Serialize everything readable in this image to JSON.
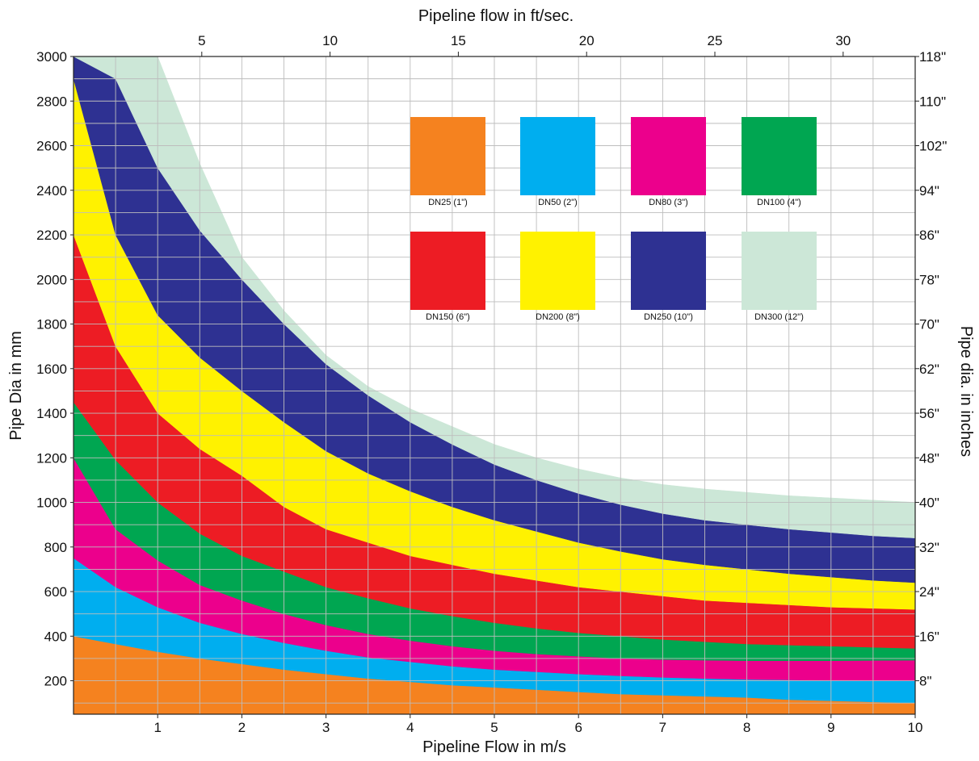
{
  "chart_data": {
    "type": "area",
    "x_unit_ft": "ft/sec",
    "xlabel": "Pipeline Flow in m/s",
    "xlabel_top": "Pipeline flow in ft/sec.",
    "ylabel": "Pipe Dia in mm",
    "ylabel_right": "Pipe dia. in inches",
    "xlim": [
      0,
      10
    ],
    "ylim": [
      50,
      3000
    ],
    "x_ticks": [
      "1",
      "2",
      "3",
      "4",
      "5",
      "6",
      "7",
      "8",
      "9",
      "10"
    ],
    "x_ticks_values": [
      1,
      2,
      3,
      4,
      5,
      6,
      7,
      8,
      9,
      10
    ],
    "x_top_ticks": [
      "5",
      "10",
      "15",
      "20",
      "25",
      "30"
    ],
    "x_top_ticks_values": [
      5,
      10,
      15,
      20,
      25,
      30
    ],
    "y_ticks": [
      "200",
      "400",
      "600",
      "800",
      "1000",
      "1200",
      "1400",
      "1600",
      "1800",
      "2000",
      "2200",
      "2400",
      "2600",
      "2800",
      "3000"
    ],
    "y_ticks_values": [
      200,
      400,
      600,
      800,
      1000,
      1200,
      1400,
      1600,
      1800,
      2000,
      2200,
      2400,
      2600,
      2800,
      3000
    ],
    "y_right_ticks": [
      "8\"",
      "16\"",
      "24\"",
      "32\"",
      "40\"",
      "48\"",
      "56\"",
      "62\"",
      "70\"",
      "78\"",
      "86\"",
      "94\"",
      "102\"",
      "110\"",
      "118\""
    ],
    "y_right_ticks_values": [
      200,
      400,
      600,
      800,
      1000,
      1200,
      1400,
      1600,
      1800,
      2000,
      2200,
      2400,
      2600,
      2800,
      3000
    ],
    "grid": true,
    "legend_position": "top-right",
    "boundary_x": [
      0,
      0.5,
      1,
      1.5,
      2,
      2.5,
      3,
      3.5,
      4,
      4.5,
      5,
      5.5,
      6,
      6.5,
      7,
      7.5,
      8,
      8.5,
      9,
      9.5,
      10
    ],
    "series": [
      {
        "name": "DN25 (1\")",
        "color": "#F5821F",
        "lower": [
          50,
          50,
          50,
          50,
          50,
          50,
          50,
          50,
          50,
          50,
          50,
          50,
          50,
          50,
          50,
          50,
          50,
          50,
          50,
          50,
          50
        ],
        "upper": [
          400,
          365,
          330,
          300,
          275,
          250,
          230,
          210,
          195,
          180,
          170,
          160,
          150,
          140,
          135,
          130,
          125,
          115,
          110,
          105,
          100
        ]
      },
      {
        "name": "DN50 (2\")",
        "color": "#00AEEF",
        "lower": [
          400,
          365,
          330,
          300,
          275,
          250,
          230,
          210,
          195,
          180,
          170,
          160,
          150,
          140,
          135,
          130,
          125,
          115,
          110,
          105,
          100
        ],
        "upper": [
          750,
          620,
          530,
          460,
          410,
          370,
          335,
          305,
          285,
          265,
          250,
          240,
          230,
          222,
          215,
          210,
          206,
          204,
          202,
          201,
          200
        ]
      },
      {
        "name": "DN80 (3\")",
        "color": "#EC008C",
        "lower": [
          750,
          620,
          530,
          460,
          410,
          370,
          335,
          305,
          285,
          265,
          250,
          240,
          230,
          222,
          215,
          210,
          206,
          204,
          202,
          201,
          200
        ],
        "upper": [
          1200,
          880,
          740,
          630,
          560,
          500,
          450,
          410,
          380,
          355,
          335,
          320,
          310,
          300,
          295,
          292,
          290,
          290,
          290,
          291,
          292
        ]
      },
      {
        "name": "DN100 (4\")",
        "color": "#00A651",
        "lower": [
          1200,
          880,
          740,
          630,
          560,
          500,
          450,
          410,
          380,
          355,
          335,
          320,
          310,
          300,
          295,
          292,
          290,
          290,
          290,
          291,
          292
        ],
        "upper": [
          1450,
          1190,
          1000,
          860,
          760,
          690,
          620,
          570,
          525,
          490,
          460,
          435,
          415,
          400,
          385,
          375,
          365,
          360,
          355,
          350,
          345
        ]
      },
      {
        "name": "DN150 (6\")",
        "color": "#ED1C24",
        "lower": [
          1450,
          1190,
          1000,
          860,
          760,
          690,
          620,
          570,
          525,
          490,
          460,
          435,
          415,
          400,
          385,
          375,
          365,
          360,
          355,
          350,
          345
        ],
        "upper": [
          2200,
          1700,
          1400,
          1240,
          1120,
          980,
          880,
          820,
          760,
          720,
          680,
          650,
          620,
          600,
          580,
          560,
          550,
          540,
          530,
          525,
          520
        ]
      },
      {
        "name": "DN200 (8\")",
        "color": "#FFF200",
        "lower": [
          2200,
          1700,
          1400,
          1240,
          1120,
          980,
          880,
          820,
          760,
          720,
          680,
          650,
          620,
          600,
          580,
          560,
          550,
          540,
          530,
          525,
          520
        ],
        "upper": [
          2900,
          2200,
          1840,
          1650,
          1500,
          1360,
          1230,
          1130,
          1050,
          980,
          920,
          870,
          820,
          780,
          745,
          720,
          700,
          680,
          665,
          650,
          640
        ]
      },
      {
        "name": "DN250 (10\")",
        "color": "#2E3192",
        "lower": [
          2900,
          2200,
          1840,
          1650,
          1500,
          1360,
          1230,
          1130,
          1050,
          980,
          920,
          870,
          820,
          780,
          745,
          720,
          700,
          680,
          665,
          650,
          640
        ],
        "upper": [
          3000,
          2900,
          2500,
          2220,
          2000,
          1800,
          1620,
          1480,
          1360,
          1260,
          1170,
          1100,
          1040,
          990,
          950,
          920,
          900,
          880,
          865,
          850,
          840
        ]
      },
      {
        "name": "DN300 (12\")",
        "color": "#CCE7D7",
        "lower": [
          3000,
          2900,
          2500,
          2220,
          2000,
          1800,
          1620,
          1480,
          1360,
          1260,
          1170,
          1100,
          1040,
          990,
          950,
          920,
          900,
          880,
          865,
          850,
          840
        ],
        "upper": [
          3000,
          3000,
          3000,
          2520,
          2100,
          1860,
          1660,
          1520,
          1420,
          1340,
          1260,
          1200,
          1150,
          1110,
          1080,
          1060,
          1045,
          1030,
          1020,
          1010,
          1000
        ]
      }
    ]
  }
}
